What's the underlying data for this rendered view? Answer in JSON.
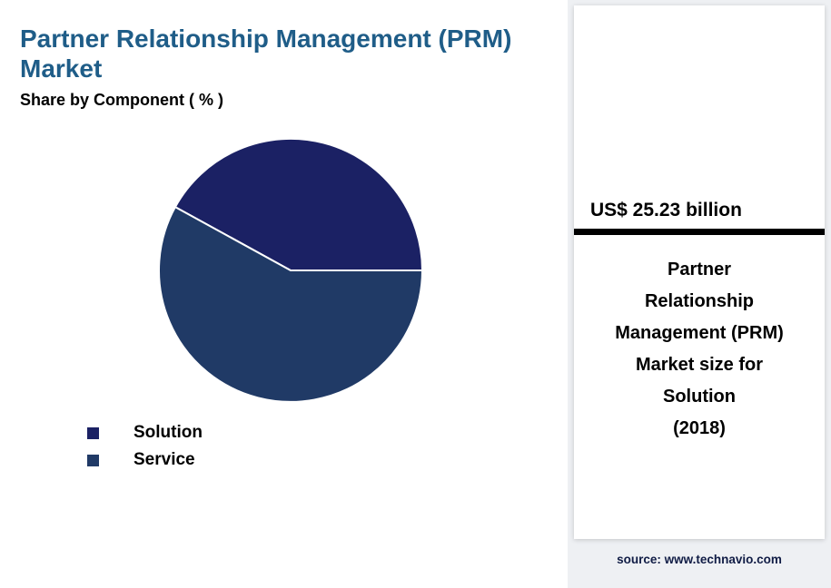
{
  "title": "Partner Relationship Management (PRM) Market",
  "subtitle": "Share by Component ( % )",
  "chart_data": {
    "type": "pie",
    "title": "Share by Component ( % )",
    "slices": [
      {
        "label": "Solution",
        "value": 42,
        "color": "#1b2164"
      },
      {
        "label": "Service",
        "value": 58,
        "color": "#203a66"
      }
    ],
    "start_angle_deg": 0,
    "direction": "counterclockwise",
    "legend_position": "bottom-left"
  },
  "stat_card": {
    "value": "US$ 25.23 billion",
    "description_lines": [
      "Partner",
      "Relationship",
      "Management (PRM)",
      "Market size for",
      "Solution",
      "(2018)"
    ]
  },
  "source": "source: www.technavio.com",
  "colors": {
    "title_text": "#1f5d88",
    "divider_bar": "#000000",
    "source_text": "#101c45",
    "page_background": "#eef0f3",
    "panel_background": "#ffffff"
  }
}
